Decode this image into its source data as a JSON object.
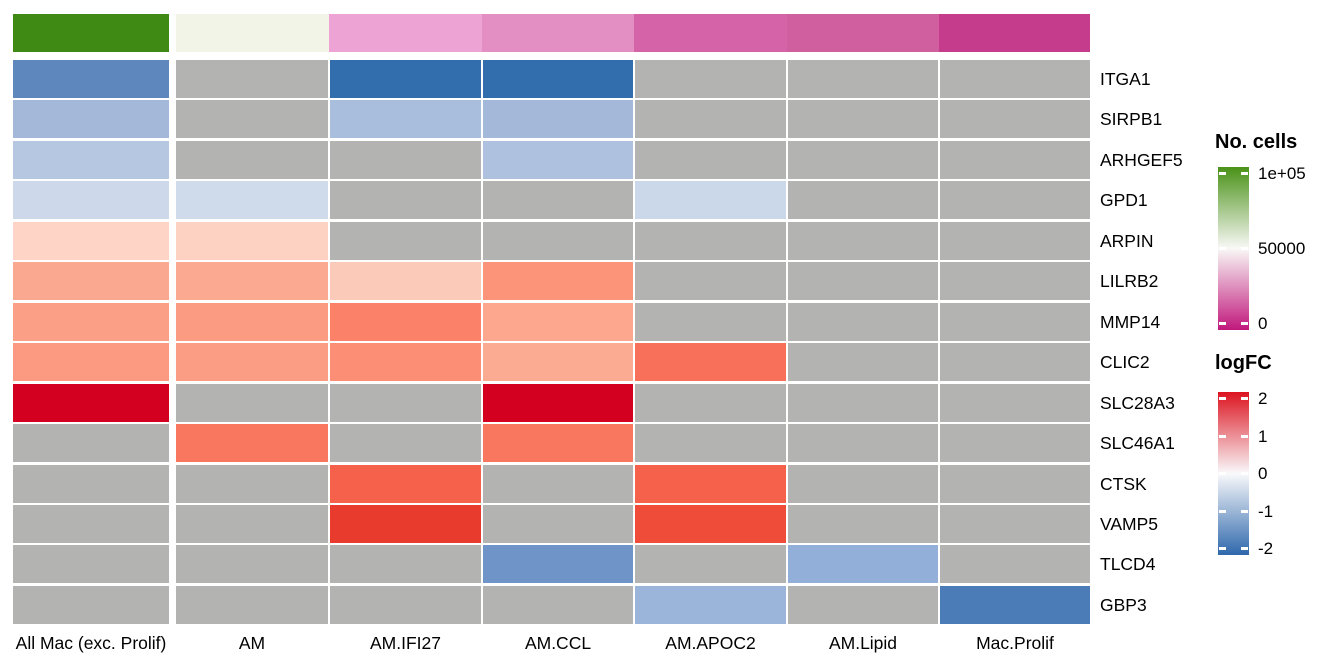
{
  "chart_data": {
    "type": "heatmap",
    "title": "",
    "value_name": "logFC",
    "na_color": "#b3b3b2",
    "columns": [
      "All Mac (exc. Prolif)",
      "AM",
      "AM.IFI27",
      "AM.CCL",
      "AM.APOC2",
      "AM.Lipid",
      "Mac.Prolif"
    ],
    "rows": [
      "ITGA1",
      "SIRPB1",
      "ARHGEF5",
      "GPD1",
      "ARPIN",
      "LILRB2",
      "MMP14",
      "CLIC2",
      "SLC28A3",
      "SLC46A1",
      "CTSK",
      "VAMP5",
      "TLCD4",
      "GBP3"
    ],
    "values": [
      [
        -1.5,
        null,
        -1.9,
        -1.9,
        null,
        null,
        null
      ],
      [
        -0.8,
        null,
        -0.75,
        -0.8,
        null,
        null,
        null
      ],
      [
        -0.6,
        null,
        null,
        -0.7,
        null,
        null,
        null
      ],
      [
        -0.4,
        -0.4,
        null,
        null,
        -0.4,
        null,
        null
      ],
      [
        0.35,
        0.35,
        null,
        null,
        null,
        null,
        null
      ],
      [
        0.75,
        0.75,
        0.45,
        0.95,
        null,
        null,
        null
      ],
      [
        0.85,
        0.9,
        1.1,
        0.75,
        null,
        null,
        null
      ],
      [
        0.85,
        0.85,
        0.95,
        0.7,
        1.25,
        null,
        null
      ],
      [
        2.4,
        null,
        null,
        2.4,
        null,
        null,
        null
      ],
      [
        null,
        1.2,
        null,
        1.2,
        null,
        null,
        null
      ],
      [
        null,
        null,
        1.35,
        null,
        1.35,
        null,
        null
      ],
      [
        null,
        null,
        1.7,
        null,
        1.55,
        null,
        null
      ],
      [
        null,
        null,
        null,
        -1.2,
        null,
        -0.95,
        null
      ],
      [
        null,
        null,
        null,
        null,
        -0.9,
        null,
        -1.65
      ]
    ],
    "cell_colors": [
      [
        "#5e88bd",
        null,
        "#326dae",
        "#326dae",
        null,
        null,
        null
      ],
      [
        "#a4b9da",
        null,
        "#a9bedd",
        "#a4b9da",
        null,
        null,
        null
      ],
      [
        "#b6c7e2",
        null,
        null,
        "#aec1de",
        null,
        null,
        null
      ],
      [
        "#cdd9eb",
        "#cfdaea",
        null,
        null,
        "#cbd8ea",
        null,
        null
      ],
      [
        "#fdd4c5",
        "#fdd2c2",
        null,
        null,
        null,
        null,
        null
      ],
      [
        "#fba890",
        "#fba990",
        "#fccab8",
        "#fc9479",
        null,
        null,
        null
      ],
      [
        "#fb9f86",
        "#fb9c82",
        "#fb8269",
        "#fca78e",
        null,
        null,
        null
      ],
      [
        "#fb9a80",
        "#fb9d84",
        "#fb8e74",
        "#fcab93",
        "#f8705a",
        null,
        null
      ],
      [
        "#d40020",
        null,
        null,
        "#d40020",
        null,
        null,
        null
      ],
      [
        null,
        "#f9775f",
        null,
        "#f9775f",
        null,
        null,
        null
      ],
      [
        null,
        null,
        "#f6614b",
        null,
        "#f6614b",
        null,
        null
      ],
      [
        null,
        null,
        "#e93b2d",
        null,
        "#ef4c3a",
        null,
        null
      ],
      [
        null,
        null,
        null,
        "#6f94c8",
        null,
        "#92afd9",
        null
      ],
      [
        null,
        null,
        null,
        null,
        "#9ab4da",
        null,
        "#4c7cb8"
      ]
    ],
    "column_annotation": {
      "name": "No. cells",
      "colors": [
        "#3e8a14",
        "#f1f4e7",
        "#eda3d4",
        "#e48fc3",
        "#d563a7",
        "#d05f9f",
        "#c43c8b"
      ],
      "values_estimate": [
        97000,
        53000,
        32000,
        28000,
        18000,
        17000,
        8000
      ]
    },
    "legends": {
      "cells": {
        "title": "No. cells",
        "tick_labels": [
          "1e+05",
          "50000",
          "0"
        ],
        "tick_values": [
          100000,
          50000,
          0
        ],
        "range": [
          0,
          100000
        ],
        "gradient": [
          "#4a9218",
          "#f9f8f6",
          "#c0187c"
        ]
      },
      "logfc": {
        "title": "logFC",
        "tick_labels": [
          "2",
          "1",
          "0",
          "-1",
          "-2"
        ],
        "tick_values": [
          2,
          1,
          0,
          -1,
          -2
        ],
        "range": [
          -2,
          2
        ],
        "gradient": [
          "#dc1420",
          "#f9f9fb",
          "#2e68ac"
        ]
      }
    }
  }
}
